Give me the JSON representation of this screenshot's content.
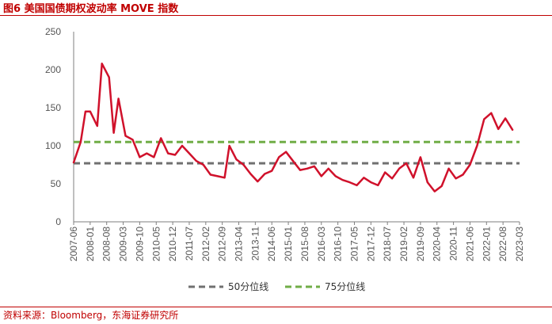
{
  "header": {
    "title": "图6  美国国债期权波动率 MOVE 指数"
  },
  "footer": {
    "source": "资料来源：Bloomberg，东海证券研究所"
  },
  "colors": {
    "accent": "#c00000",
    "series": "#d0112b",
    "p50": "#707070",
    "p75": "#70ad47"
  },
  "chart_data": {
    "type": "line",
    "title": "",
    "xlabel": "",
    "ylabel": "",
    "ylim": [
      0,
      250
    ],
    "yticks": [
      0,
      50,
      100,
      150,
      200,
      250
    ],
    "xticks": [
      "2007-06",
      "2008-01",
      "2008-08",
      "2009-03",
      "2009-10",
      "2010-05",
      "2010-12",
      "2011-07",
      "2012-02",
      "2012-09",
      "2013-04",
      "2013-11",
      "2014-06",
      "2015-01",
      "2015-08",
      "2016-03",
      "2016-10",
      "2017-05",
      "2017-12",
      "2018-07",
      "2019-02",
      "2019-09",
      "2020-04",
      "2020-11",
      "2021-06",
      "2022-01",
      "2022-08",
      "2023-03"
    ],
    "grid": false,
    "legend_position": "bottom",
    "series": [
      {
        "name": "MOVE",
        "kind": "line",
        "show_in_legend": false,
        "points": [
          [
            "2007-06",
            78
          ],
          [
            "2007-09",
            105
          ],
          [
            "2007-11",
            145
          ],
          [
            "2008-01",
            145
          ],
          [
            "2008-04",
            126
          ],
          [
            "2008-06",
            208
          ],
          [
            "2008-09",
            190
          ],
          [
            "2008-11",
            117
          ],
          [
            "2009-01",
            162
          ],
          [
            "2009-04",
            113
          ],
          [
            "2009-07",
            108
          ],
          [
            "2009-10",
            85
          ],
          [
            "2010-01",
            90
          ],
          [
            "2010-04",
            85
          ],
          [
            "2010-07",
            110
          ],
          [
            "2010-10",
            90
          ],
          [
            "2011-01",
            88
          ],
          [
            "2011-04",
            100
          ],
          [
            "2011-07",
            90
          ],
          [
            "2011-10",
            80
          ],
          [
            "2012-01",
            75
          ],
          [
            "2012-04",
            62
          ],
          [
            "2012-07",
            60
          ],
          [
            "2012-10",
            58
          ],
          [
            "2012-12",
            100
          ],
          [
            "2013-03",
            82
          ],
          [
            "2013-06",
            75
          ],
          [
            "2013-09",
            63
          ],
          [
            "2013-12",
            53
          ],
          [
            "2014-03",
            63
          ],
          [
            "2014-06",
            67
          ],
          [
            "2014-09",
            85
          ],
          [
            "2014-12",
            92
          ],
          [
            "2015-03",
            80
          ],
          [
            "2015-06",
            68
          ],
          [
            "2015-09",
            70
          ],
          [
            "2015-12",
            73
          ],
          [
            "2016-03",
            60
          ],
          [
            "2016-06",
            70
          ],
          [
            "2016-09",
            60
          ],
          [
            "2016-12",
            55
          ],
          [
            "2017-03",
            52
          ],
          [
            "2017-06",
            48
          ],
          [
            "2017-09",
            58
          ],
          [
            "2017-12",
            52
          ],
          [
            "2018-03",
            48
          ],
          [
            "2018-06",
            65
          ],
          [
            "2018-09",
            57
          ],
          [
            "2018-12",
            70
          ],
          [
            "2019-03",
            77
          ],
          [
            "2019-06",
            58
          ],
          [
            "2019-09",
            85
          ],
          [
            "2019-12",
            52
          ],
          [
            "2020-03",
            40
          ],
          [
            "2020-06",
            47
          ],
          [
            "2020-09",
            70
          ],
          [
            "2020-12",
            57
          ],
          [
            "2021-03",
            62
          ],
          [
            "2021-06",
            75
          ],
          [
            "2021-09",
            100
          ],
          [
            "2021-12",
            135
          ],
          [
            "2022-03",
            143
          ],
          [
            "2022-06",
            122
          ],
          [
            "2022-09",
            136
          ],
          [
            "2022-12",
            121
          ]
        ]
      },
      {
        "name": "50分位线",
        "kind": "hline",
        "value": 77
      },
      {
        "name": "75分位线",
        "kind": "hline",
        "value": 105
      }
    ]
  }
}
